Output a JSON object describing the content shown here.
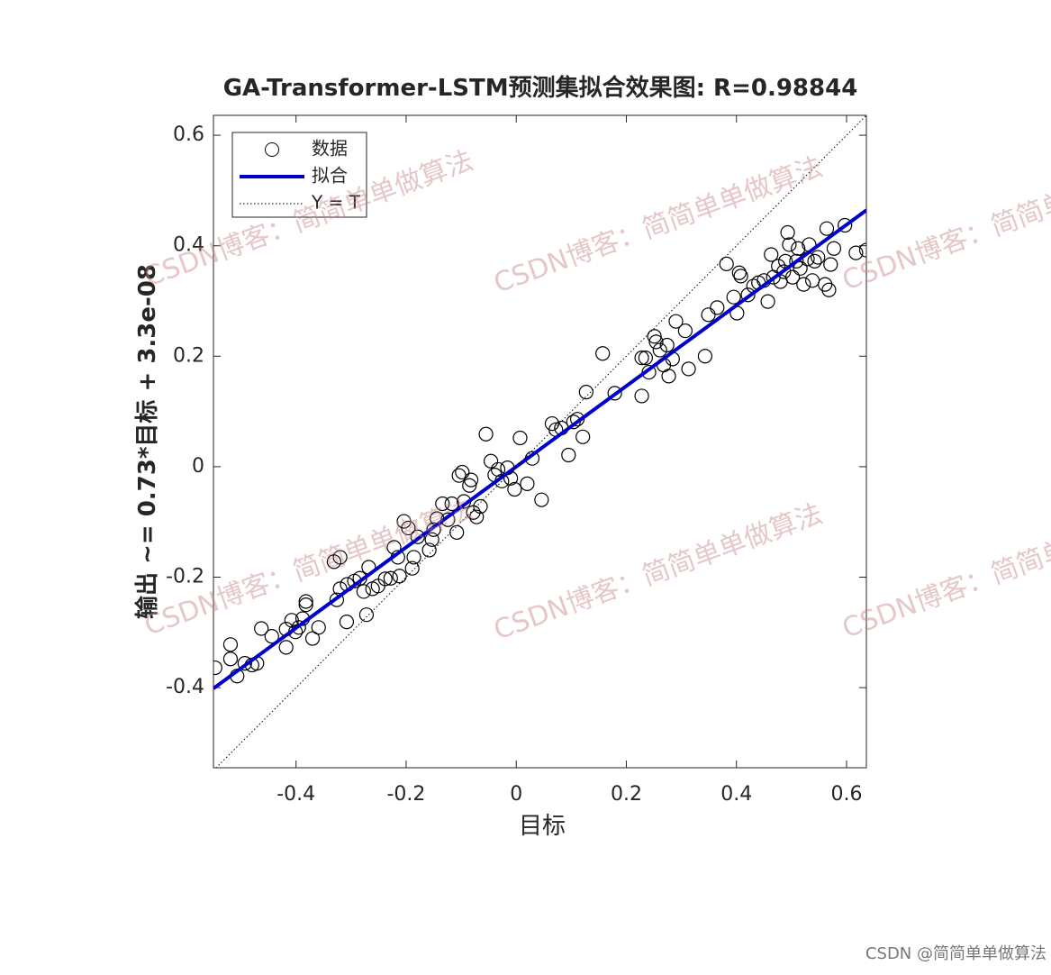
{
  "chart_data": {
    "type": "scatter",
    "title": "GA-Transformer-LSTM预测集拟合效果图: R=0.98844",
    "xlabel": "目标",
    "ylabel": "输出 ~= 0.73*目标 + 3.3e-08",
    "xlim": [
      -0.55,
      0.636
    ],
    "ylim": [
      -0.545,
      0.636
    ],
    "xticks": [
      -0.4,
      -0.2,
      0,
      0.2,
      0.4,
      0.6
    ],
    "yticks": [
      -0.4,
      -0.2,
      0,
      0.2,
      0.4,
      0.6
    ],
    "legend": "upper-left",
    "series": [
      {
        "name": "数据",
        "type": "scatter",
        "color": "#000000",
        "x": [
          -0.547,
          -0.519,
          -0.519,
          -0.507,
          -0.493,
          -0.48,
          -0.471,
          -0.463,
          -0.444,
          -0.418,
          -0.418,
          -0.408,
          -0.401,
          -0.395,
          -0.388,
          -0.382,
          -0.382,
          -0.37,
          -0.359,
          -0.331,
          -0.32,
          -0.326,
          -0.32,
          -0.308,
          -0.307,
          -0.294,
          -0.284,
          -0.277,
          -0.272,
          -0.268,
          -0.261,
          -0.251,
          -0.238,
          -0.228,
          -0.222,
          -0.215,
          -0.212,
          -0.204,
          -0.196,
          -0.189,
          -0.186,
          -0.179,
          -0.158,
          -0.153,
          -0.15,
          -0.144,
          -0.134,
          -0.124,
          -0.117,
          -0.108,
          -0.104,
          -0.098,
          -0.095,
          -0.085,
          -0.082,
          -0.078,
          -0.072,
          -0.065,
          -0.055,
          -0.046,
          -0.039,
          -0.033,
          -0.026,
          -0.016,
          -0.01,
          -0.003,
          0.007,
          0.02,
          0.029,
          0.046,
          0.065,
          0.072,
          0.082,
          0.095,
          0.104,
          0.111,
          0.121,
          0.127,
          0.157,
          0.179,
          0.228,
          0.228,
          0.235,
          0.241,
          0.251,
          0.254,
          0.261,
          0.268,
          0.274,
          0.277,
          0.284,
          0.29,
          0.307,
          0.313,
          0.343,
          0.349,
          0.365,
          0.382,
          0.395,
          0.401,
          0.405,
          0.408,
          0.421,
          0.431,
          0.44,
          0.45,
          0.457,
          0.463,
          0.467,
          0.476,
          0.48,
          0.486,
          0.489,
          0.493,
          0.496,
          0.502,
          0.509,
          0.512,
          0.516,
          0.522,
          0.529,
          0.532,
          0.538,
          0.542,
          0.548,
          0.561,
          0.564,
          0.568,
          0.571,
          0.577,
          0.597,
          0.617,
          0.636
        ],
        "values": [
          -0.364,
          -0.322,
          -0.348,
          -0.379,
          -0.356,
          -0.359,
          -0.356,
          -0.293,
          -0.307,
          -0.327,
          -0.294,
          -0.278,
          -0.299,
          -0.291,
          -0.275,
          -0.25,
          -0.244,
          -0.311,
          -0.291,
          -0.172,
          -0.164,
          -0.241,
          -0.221,
          -0.281,
          -0.213,
          -0.207,
          -0.202,
          -0.226,
          -0.268,
          -0.182,
          -0.221,
          -0.216,
          -0.203,
          -0.202,
          -0.146,
          -0.164,
          -0.198,
          -0.099,
          -0.111,
          -0.184,
          -0.164,
          -0.127,
          -0.151,
          -0.132,
          -0.114,
          -0.094,
          -0.067,
          -0.096,
          -0.067,
          -0.119,
          -0.016,
          -0.01,
          -0.063,
          -0.034,
          -0.024,
          -0.083,
          -0.091,
          -0.072,
          0.059,
          0.01,
          -0.015,
          -0.005,
          -0.026,
          -0.002,
          -0.021,
          -0.041,
          0.052,
          -0.031,
          0.015,
          -0.06,
          0.078,
          0.067,
          0.07,
          0.021,
          0.081,
          0.086,
          0.054,
          0.135,
          0.205,
          0.133,
          0.128,
          0.197,
          0.197,
          0.171,
          0.236,
          0.226,
          0.211,
          0.184,
          0.22,
          0.164,
          0.195,
          0.263,
          0.246,
          0.177,
          0.2,
          0.275,
          0.288,
          0.367,
          0.307,
          0.278,
          0.351,
          0.345,
          0.311,
          0.327,
          0.333,
          0.337,
          0.299,
          0.384,
          0.343,
          0.363,
          0.335,
          0.353,
          0.372,
          0.424,
          0.402,
          0.343,
          0.372,
          0.395,
          0.359,
          0.33,
          0.376,
          0.402,
          0.337,
          0.372,
          0.379,
          0.33,
          0.431,
          0.32,
          0.366,
          0.395,
          0.437,
          0.387,
          0.392
        ]
      },
      {
        "name": "拟合",
        "type": "line",
        "color": "#0000cc",
        "x": [
          -0.55,
          0.636
        ],
        "values": [
          -0.4015,
          0.4643
        ]
      },
      {
        "name": "Y = T",
        "type": "line",
        "color": "#000000",
        "dash": "dotted",
        "x": [
          -0.55,
          0.636
        ],
        "values": [
          -0.55,
          0.636
        ]
      }
    ],
    "watermark": "CSDN博客：简简单单做算法",
    "footer": "CSDN @简简单单做算法"
  }
}
